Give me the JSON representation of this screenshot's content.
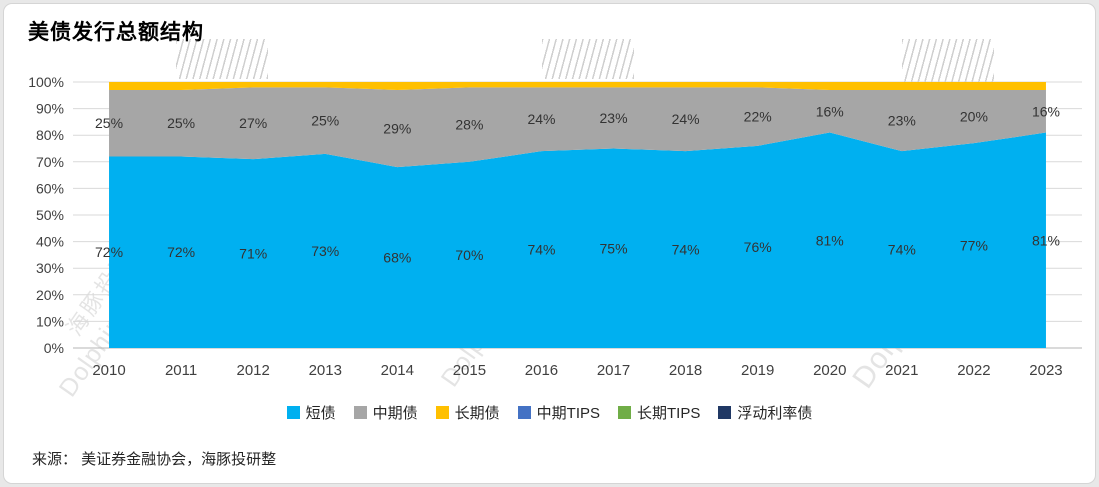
{
  "page": {
    "title": "美债发行总额结构",
    "source": "来源： 美证券金融协会，海豚投研整",
    "watermark_cn": "海豚投研",
    "watermark_en": "DolphinResearch"
  },
  "chart_data": {
    "type": "area",
    "stacked": true,
    "percent_total": 100,
    "title": "美债发行总额结构",
    "categories": [
      "2010",
      "2011",
      "2012",
      "2013",
      "2014",
      "2015",
      "2016",
      "2017",
      "2018",
      "2019",
      "2020",
      "2021",
      "2022",
      "2023"
    ],
    "yticks": [
      "0%",
      "10%",
      "20%",
      "30%",
      "40%",
      "50%",
      "60%",
      "70%",
      "80%",
      "90%",
      "100%"
    ],
    "ylim": [
      0,
      100
    ],
    "grid": true,
    "legend_position": "bottom",
    "series": [
      {
        "name": "短债",
        "color": "#00B0F0",
        "show_labels": true,
        "values": [
          72,
          72,
          71,
          73,
          68,
          70,
          74,
          75,
          74,
          76,
          81,
          74,
          77,
          81
        ]
      },
      {
        "name": "中期债",
        "color": "#A6A6A6",
        "show_labels": true,
        "values": [
          25,
          25,
          27,
          25,
          29,
          28,
          24,
          23,
          24,
          22,
          16,
          23,
          20,
          16
        ]
      },
      {
        "name": "长期债",
        "color": "#FFC000",
        "show_labels": false,
        "values": [
          3,
          3,
          2,
          2,
          3,
          2,
          2,
          2,
          2,
          2,
          3,
          3,
          3,
          3
        ]
      },
      {
        "name": "中期TIPS",
        "color": "#4472C4",
        "show_labels": false,
        "values": [
          0,
          0,
          0,
          0,
          0,
          0,
          0,
          0,
          0,
          0,
          0,
          0,
          0,
          0
        ]
      },
      {
        "name": "长期TIPS",
        "color": "#70AD47",
        "show_labels": false,
        "values": [
          0,
          0,
          0,
          0,
          0,
          0,
          0,
          0,
          0,
          0,
          0,
          0,
          0,
          0
        ]
      },
      {
        "name": "浮动利率债",
        "color": "#203864",
        "show_labels": false,
        "values": [
          0,
          0,
          0,
          0,
          0,
          0,
          0,
          0,
          0,
          0,
          0,
          0,
          0,
          0
        ]
      }
    ]
  }
}
